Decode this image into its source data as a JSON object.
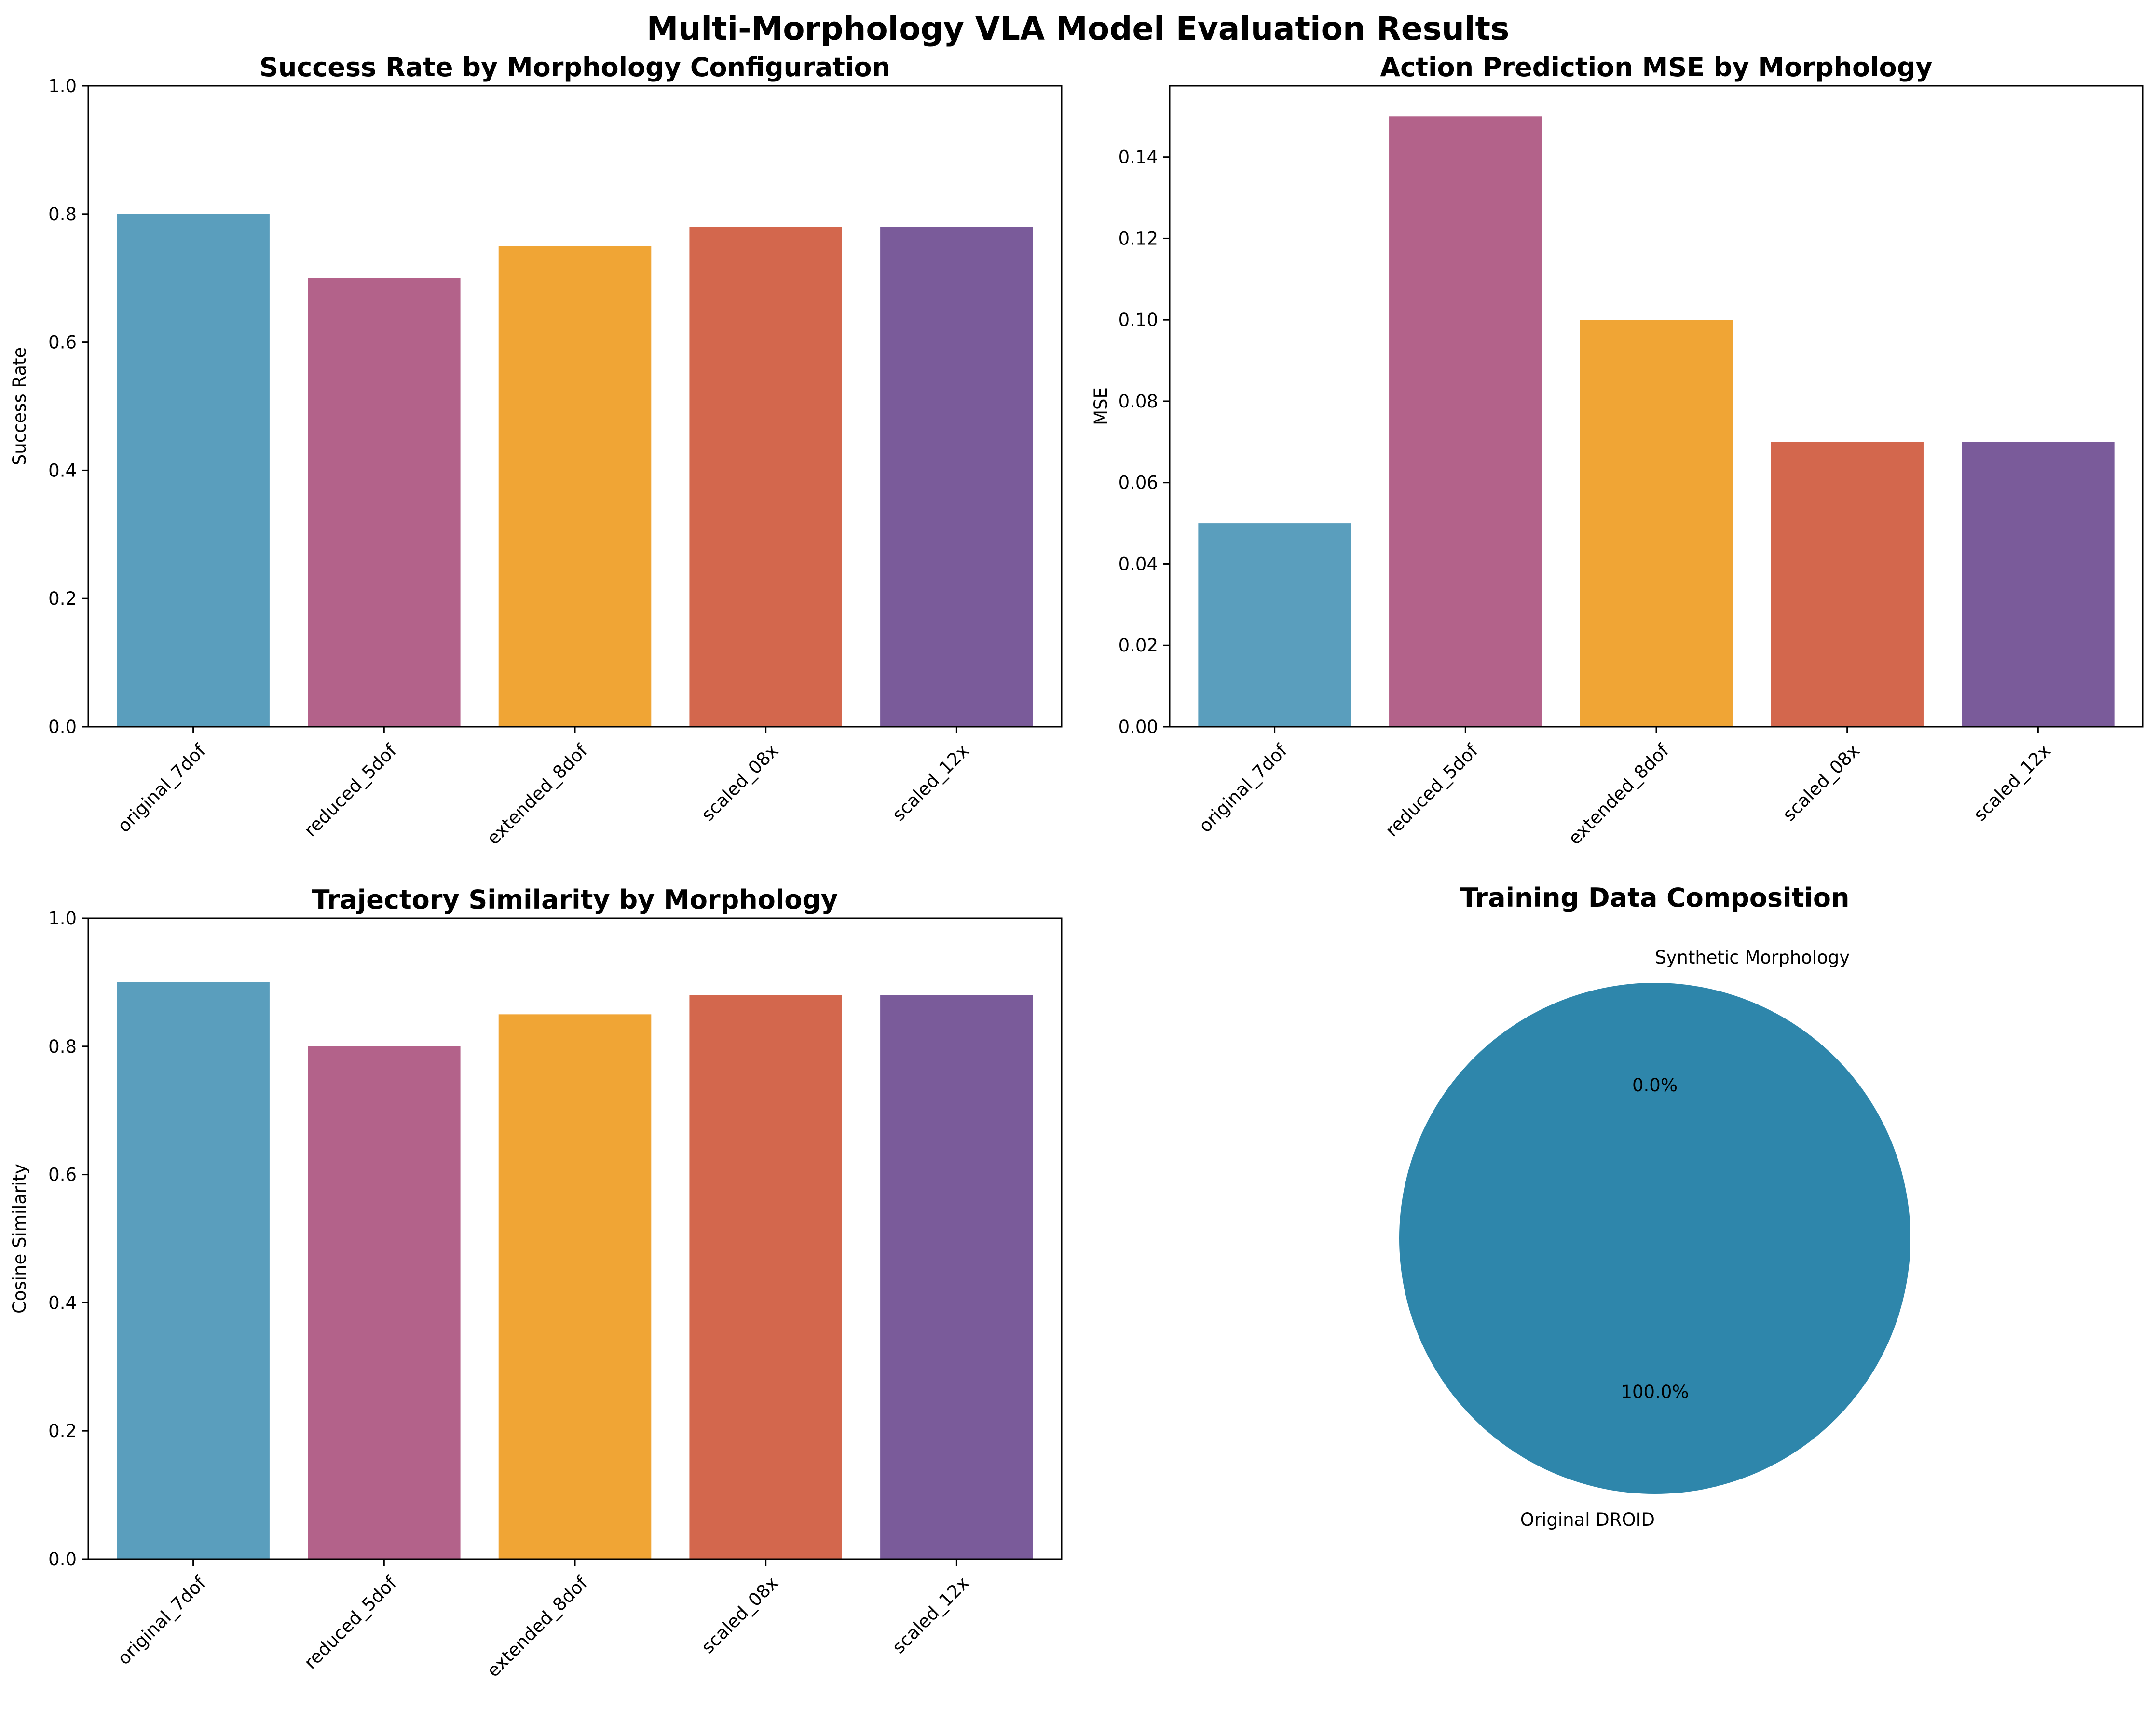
{
  "figure": {
    "suptitle": "Multi-Morphology VLA Model Evaluation Results"
  },
  "chart_data": [
    {
      "type": "bar",
      "title": "Success Rate by Morphology Configuration",
      "xlabel": "",
      "ylabel": "Success Rate",
      "categories": [
        "original_7dof",
        "reduced_5dof",
        "extended_8dof",
        "scaled_08x",
        "scaled_12x"
      ],
      "values": [
        0.8,
        0.7,
        0.75,
        0.78,
        0.78
      ],
      "colors": [
        "#5a9ebd",
        "#b3628a",
        "#f0a535",
        "#d3674d",
        "#7a5b9a"
      ],
      "ylim": [
        0,
        1.0
      ],
      "yticks": [
        "0.0",
        "0.2",
        "0.4",
        "0.6",
        "0.8",
        "1.0"
      ],
      "grid": false
    },
    {
      "type": "bar",
      "title": "Action Prediction MSE by Morphology",
      "xlabel": "",
      "ylabel": "MSE",
      "categories": [
        "original_7dof",
        "reduced_5dof",
        "extended_8dof",
        "scaled_08x",
        "scaled_12x"
      ],
      "values": [
        0.05,
        0.15,
        0.1,
        0.07,
        0.07
      ],
      "colors": [
        "#5a9ebd",
        "#b3628a",
        "#f0a535",
        "#d3674d",
        "#7a5b9a"
      ],
      "ylim": [
        0,
        0.1575
      ],
      "yticks": [
        "0.00",
        "0.02",
        "0.04",
        "0.06",
        "0.08",
        "0.10",
        "0.12",
        "0.14"
      ],
      "grid": false
    },
    {
      "type": "bar",
      "title": "Trajectory Similarity by Morphology",
      "xlabel": "",
      "ylabel": "Cosine Similarity",
      "categories": [
        "original_7dof",
        "reduced_5dof",
        "extended_8dof",
        "scaled_08x",
        "scaled_12x"
      ],
      "values": [
        0.9,
        0.8,
        0.85,
        0.88,
        0.88
      ],
      "colors": [
        "#5a9ebd",
        "#b3628a",
        "#f0a535",
        "#d3674d",
        "#7a5b9a"
      ],
      "ylim": [
        0,
        1.0
      ],
      "yticks": [
        "0.0",
        "0.2",
        "0.4",
        "0.6",
        "0.8",
        "1.0"
      ],
      "grid": false
    },
    {
      "type": "pie",
      "title": "Training Data Composition",
      "labels": [
        "Original DROID",
        "Synthetic Morphology"
      ],
      "values": [
        100.0,
        0.0
      ],
      "pct_labels": [
        "100.0%",
        "0.0%"
      ],
      "colors": [
        "#2e86ab",
        "#a23b72"
      ]
    }
  ]
}
